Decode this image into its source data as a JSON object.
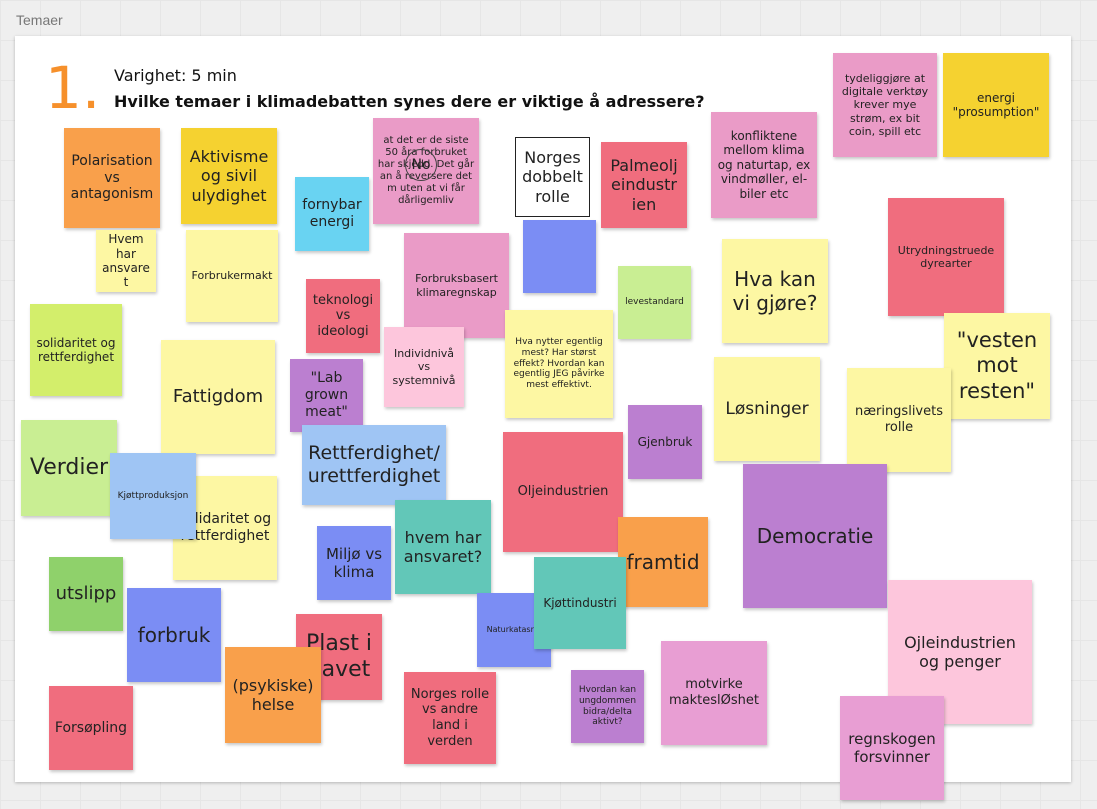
{
  "frame_label": "Temaer",
  "header": {
    "number": "1.",
    "duration": "Varighet: 5 min",
    "question": "Hvilke temaer i klimadebatten synes dere er viktige å adressere?"
  },
  "colors": {
    "orange": "#f9a04b",
    "yellow": "#f5d230",
    "light_yellow": "#fdf7a3",
    "cyan": "#69d3f2",
    "pink": "#ea9bc7",
    "red": "#f06d7e",
    "light_pink": "#fdc6dc",
    "lime": "#d3ee6b",
    "light_green": "#c9ee93",
    "green": "#8fd16b",
    "blue": "#7b8df4",
    "light_blue": "#9fc5f4",
    "purple": "#bb7fd0",
    "teal": "#62c7b8",
    "magenta": "#e89ed3"
  },
  "notes": {
    "polarisation": "Polarisation vs antagonism",
    "aktivisme": "Aktivisme og sivil ulydighet",
    "siste50": "at det er de siste 50 åra forbruket har skjedd. Det går an å reversere det m uten at vi får dårligemliv",
    "no": "No",
    "norges_dobbelt": "Norges dobbelt rolle",
    "palmeolj": "Palmeolj eindustr ien",
    "konfliktene": "konfliktene mellom klima og naturtap, ex vindmøller, el-biler etc",
    "tydeliggjore": "tydeliggjøre at digitale verktøy krever mye strøm, ex bit coin, spill etc",
    "energi": "energi \"prosumption\"",
    "fornybar": "fornybar energi",
    "hvem_har": "Hvem har ansvaret",
    "forbrukermakt": "Forbrukermakt",
    "forbruksbasert": "Forbruksbasert klimaregnskap",
    "levestandard": "levestandard",
    "hva_kan": "Hva kan vi gjøre?",
    "utrydning": "Utrydningstruede dyrearter",
    "solidaritet1": "solidaritet og rettferdighet",
    "teknologi": "teknologi vs ideologi",
    "individ": "Individnivå vs systemnivå",
    "hva_nytter": "Hva nytter egentlig mest? Har størst effekt? Hvordan kan egentlig JEG påvirke mest effektivt.",
    "vesten": "\"vesten mot resten\"",
    "fattigdom": "Fattigdom",
    "lab": "\"Lab grown meat\"",
    "losninger": "Løsninger",
    "naeringsliv": "næringslivets rolle",
    "gjenbruk": "Gjenbruk",
    "verdier": "Verdier",
    "kjottproduksjon": "Kjøttproduksjon",
    "rettferdighet": "Rettferdighet/ urettferdighet",
    "oljeindustrien": "Oljeindustrien",
    "solidaritet2": "solidaritet og rettferdighet",
    "democratie": "Democratie",
    "miljo": "Miljø vs klima",
    "hvem_har2": "hvem har ansvaret?",
    "framtid": "framtid",
    "utslipp": "utslipp",
    "kjottindustri": "Kjøttindustri",
    "naturkatastrof": "Naturkatasrof",
    "forbruk": "forbruk",
    "plast": "Plast i havet",
    "ojleindustrien": "Ojleindustrien og penger",
    "psykiske": "(psykiske) helse",
    "norges_rolle": "Norges rolle vs andre land i verden",
    "ungdommen": "Hvordan kan ungdommen bidra/delta aktivt?",
    "motvirke": "motvirke makteslØshet",
    "forsopling": "Forsøpling",
    "regnskogen": "regnskogen forsvinner"
  }
}
